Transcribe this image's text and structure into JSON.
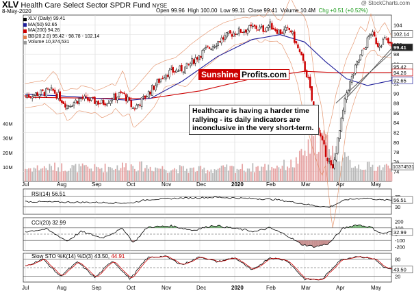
{
  "header": {
    "symbol": "XLV",
    "fund_name": "Health Care Select Sector SPDR Fund",
    "exchange": "NYSE",
    "date": "8-May-2020",
    "credit": "@ StockCharts.com",
    "stats": {
      "open_label": "Open",
      "open": "99.96",
      "high_label": "High",
      "high": "100.00",
      "low_label": "Low",
      "low": "99.11",
      "close_label": "Close",
      "close": "99.41",
      "volume_label": "Volume",
      "volume": "10.4M",
      "change_label": "Chg",
      "change": "+0.51 (+0.52%)"
    }
  },
  "legend": [
    {
      "text": "XLV (Daily) 99.41",
      "color": "#000000"
    },
    {
      "text": "MA(50) 92.65",
      "color": "#1e1e9a"
    },
    {
      "text": "MA(200) 94.26",
      "color": "#cc0000"
    },
    {
      "text": "BB(20,2.0) 95.42 - 98.78 - 102.14",
      "color": "#e08050"
    },
    {
      "text": "Volume 10,374,531",
      "color": "#999999"
    }
  ],
  "watermark": {
    "part1": "Sunshine",
    "part2": "Profits.com"
  },
  "annotation": "Healthcare is having a harder time rallying - its daily indicators are inconclusive in the very short-term.",
  "indicators": {
    "rsi": "RSI(14) 56.51",
    "cci": "CCI(20) 32.99",
    "sto_prefix": "Slow STO %K(14) %D(3) 43.50,",
    "sto_d": "44.91"
  },
  "colors": {
    "up": "#1a9a1a",
    "down": "#cc0000",
    "ma50": "#1e1e9a",
    "ma200": "#cc0000",
    "bb": "#e08050"
  },
  "chart_data": {
    "type": "candlestick",
    "title": "XLV Health Care Select Sector SPDR Fund",
    "x_tick_labels": [
      "Jul",
      "Aug",
      "Sep",
      "Oct",
      "Nov",
      "Dec",
      "2020",
      "Feb",
      "Mar",
      "Apr",
      "May"
    ],
    "price_axis": {
      "ylim": [
        72,
        106
      ],
      "ticks": [
        74,
        76,
        78,
        80,
        82,
        84,
        86,
        88,
        90,
        92,
        94,
        96,
        98,
        100,
        102,
        104
      ],
      "value_tags": [
        {
          "value": 102.14,
          "label": "102.14",
          "style": "plain"
        },
        {
          "value": 99.41,
          "label": "99.41",
          "style": "dark"
        },
        {
          "value": 95.42,
          "label": "95.42",
          "style": "plain"
        },
        {
          "value": 94.26,
          "label": "94.26",
          "style": "red"
        },
        {
          "value": 92.65,
          "label": "92.65",
          "style": "blue"
        }
      ]
    },
    "volume_axis": {
      "ylim": [
        0,
        45
      ],
      "ticks": [
        10,
        20,
        30,
        40
      ],
      "tick_labels": [
        "10M",
        "20M",
        "30M",
        "40M"
      ],
      "last_label": "10374531"
    },
    "price_path": [
      {
        "m": 0,
        "p": 89.5
      },
      {
        "m": 0.8,
        "p": 90.5
      },
      {
        "m": 1.2,
        "p": 87.5
      },
      {
        "m": 1.6,
        "p": 89
      },
      {
        "m": 2.2,
        "p": 88
      },
      {
        "m": 2.8,
        "p": 90
      },
      {
        "m": 3.1,
        "p": 86.8
      },
      {
        "m": 3.4,
        "p": 89
      },
      {
        "m": 4,
        "p": 94
      },
      {
        "m": 4.6,
        "p": 95.2
      },
      {
        "m": 5,
        "p": 98
      },
      {
        "m": 5.6,
        "p": 101
      },
      {
        "m": 6,
        "p": 102.5
      },
      {
        "m": 6.6,
        "p": 103.5
      },
      {
        "m": 6.8,
        "p": 103
      },
      {
        "m": 7,
        "p": 104
      },
      {
        "m": 7.3,
        "p": 102.5
      },
      {
        "m": 7.6,
        "p": 103
      },
      {
        "m": 7.9,
        "p": 97.5
      },
      {
        "m": 8.1,
        "p": 93
      },
      {
        "m": 8.3,
        "p": 85
      },
      {
        "m": 8.5,
        "p": 80
      },
      {
        "m": 8.7,
        "p": 76
      },
      {
        "m": 8.8,
        "p": 74
      },
      {
        "m": 9.0,
        "p": 82
      },
      {
        "m": 9.2,
        "p": 90
      },
      {
        "m": 9.5,
        "p": 96
      },
      {
        "m": 9.7,
        "p": 99
      },
      {
        "m": 9.9,
        "p": 102.5
      },
      {
        "m": 10.1,
        "p": 100
      },
      {
        "m": 10.3,
        "p": 101
      },
      {
        "m": 10.5,
        "p": 99.4
      }
    ],
    "ma50_path": [
      {
        "m": 0,
        "p": 89.8
      },
      {
        "m": 1,
        "p": 89.5
      },
      {
        "m": 2,
        "p": 89
      },
      {
        "m": 3,
        "p": 88.6
      },
      {
        "m": 3.6,
        "p": 89
      },
      {
        "m": 4.5,
        "p": 92.5
      },
      {
        "m": 5.5,
        "p": 97.5
      },
      {
        "m": 6.5,
        "p": 101
      },
      {
        "m": 7.3,
        "p": 102
      },
      {
        "m": 8,
        "p": 100.5
      },
      {
        "m": 8.6,
        "p": 96.5
      },
      {
        "m": 9.2,
        "p": 93
      },
      {
        "m": 9.8,
        "p": 91.6
      },
      {
        "m": 10.5,
        "p": 92.65
      }
    ],
    "ma200_path": [
      {
        "m": 0,
        "p": 89.2
      },
      {
        "m": 2,
        "p": 89
      },
      {
        "m": 3.5,
        "p": 88.9
      },
      {
        "m": 5,
        "p": 90.5
      },
      {
        "m": 6.5,
        "p": 93
      },
      {
        "m": 8,
        "p": 94.5
      },
      {
        "m": 9,
        "p": 94.2
      },
      {
        "m": 10.5,
        "p": 94.26
      }
    ],
    "trendlines": [
      {
        "from": {
          "m": 8.9,
          "p": 88
        },
        "to": {
          "m": 10.5,
          "p": 98.4
        }
      },
      {
        "from": {
          "m": 9.2,
          "p": 89
        },
        "to": {
          "m": 10.5,
          "p": 99.2
        }
      }
    ],
    "volume_path": [
      {
        "m": 0,
        "v": 9
      },
      {
        "m": 1,
        "v": 10
      },
      {
        "m": 2,
        "v": 9
      },
      {
        "m": 3,
        "v": 11
      },
      {
        "m": 4,
        "v": 9
      },
      {
        "m": 5,
        "v": 8
      },
      {
        "m": 6,
        "v": 9
      },
      {
        "m": 7,
        "v": 10
      },
      {
        "m": 7.7,
        "v": 12
      },
      {
        "m": 8.1,
        "v": 22
      },
      {
        "m": 8.4,
        "v": 30
      },
      {
        "m": 8.7,
        "v": 27
      },
      {
        "m": 9.0,
        "v": 17
      },
      {
        "m": 9.5,
        "v": 11
      },
      {
        "m": 10,
        "v": 10
      },
      {
        "m": 10.5,
        "v": 10
      }
    ],
    "rsi": {
      "label": "RSI(14) 56.51",
      "last": 56.51,
      "ylim": [
        0,
        100
      ],
      "levels": [
        30,
        70
      ],
      "tick_labels": [
        "70",
        "30"
      ],
      "path": [
        {
          "m": 0,
          "v": 50
        },
        {
          "m": 1,
          "v": 48
        },
        {
          "m": 2,
          "v": 47
        },
        {
          "m": 3,
          "v": 44
        },
        {
          "m": 3.5,
          "v": 58
        },
        {
          "m": 4.5,
          "v": 64
        },
        {
          "m": 5.5,
          "v": 67
        },
        {
          "m": 6.5,
          "v": 62
        },
        {
          "m": 7.2,
          "v": 58
        },
        {
          "m": 7.8,
          "v": 45
        },
        {
          "m": 8.3,
          "v": 34
        },
        {
          "m": 8.7,
          "v": 28
        },
        {
          "m": 9.2,
          "v": 58
        },
        {
          "m": 9.8,
          "v": 64
        },
        {
          "m": 10.2,
          "v": 56
        },
        {
          "m": 10.5,
          "v": 56.5
        }
      ]
    },
    "cci": {
      "label": "CCI(20) 32.99",
      "last": 32.99,
      "ylim": [
        -260,
        260
      ],
      "levels": [
        -100,
        0,
        100
      ],
      "tick_labels": [
        "200",
        "100",
        "0",
        "-100",
        "-200"
      ],
      "path": [
        {
          "m": 0,
          "v": 40
        },
        {
          "m": 0.6,
          "v": 80
        },
        {
          "m": 1.2,
          "v": -110
        },
        {
          "m": 1.6,
          "v": 40
        },
        {
          "m": 2.2,
          "v": -60
        },
        {
          "m": 2.8,
          "v": 90
        },
        {
          "m": 3.1,
          "v": -140
        },
        {
          "m": 3.5,
          "v": 110
        },
        {
          "m": 4.2,
          "v": 130
        },
        {
          "m": 4.8,
          "v": 60
        },
        {
          "m": 5.4,
          "v": 140
        },
        {
          "m": 6,
          "v": 90
        },
        {
          "m": 6.6,
          "v": 40
        },
        {
          "m": 7,
          "v": 100
        },
        {
          "m": 7.5,
          "v": -20
        },
        {
          "m": 7.9,
          "v": -160
        },
        {
          "m": 8.3,
          "v": -200
        },
        {
          "m": 8.7,
          "v": -150
        },
        {
          "m": 9.1,
          "v": 90
        },
        {
          "m": 9.5,
          "v": 150
        },
        {
          "m": 9.9,
          "v": 110
        },
        {
          "m": 10.2,
          "v": 10
        },
        {
          "m": 10.5,
          "v": 33
        }
      ]
    },
    "sto": {
      "label": "Slow STO %K(14) %D(3) 43.50, 44.91",
      "k_last": 43.5,
      "d_last": 44.91,
      "ylim": [
        0,
        100
      ],
      "levels": [
        20,
        50,
        80
      ],
      "tick_labels": [
        "80",
        "50",
        "20"
      ],
      "path": [
        {
          "m": 0,
          "v": 55
        },
        {
          "m": 0.5,
          "v": 80
        },
        {
          "m": 1,
          "v": 20
        },
        {
          "m": 1.5,
          "v": 70
        },
        {
          "m": 2,
          "v": 15
        },
        {
          "m": 2.5,
          "v": 75
        },
        {
          "m": 3,
          "v": 10
        },
        {
          "m": 3.5,
          "v": 85
        },
        {
          "m": 4,
          "v": 90
        },
        {
          "m": 4.5,
          "v": 60
        },
        {
          "m": 5,
          "v": 88
        },
        {
          "m": 5.5,
          "v": 70
        },
        {
          "m": 6,
          "v": 85
        },
        {
          "m": 6.5,
          "v": 40
        },
        {
          "m": 7,
          "v": 85
        },
        {
          "m": 7.5,
          "v": 75
        },
        {
          "m": 8,
          "v": 10
        },
        {
          "m": 8.5,
          "v": 8
        },
        {
          "m": 9,
          "v": 75
        },
        {
          "m": 9.5,
          "v": 90
        },
        {
          "m": 10,
          "v": 80
        },
        {
          "m": 10.3,
          "v": 50
        },
        {
          "m": 10.5,
          "v": 44
        }
      ]
    }
  }
}
